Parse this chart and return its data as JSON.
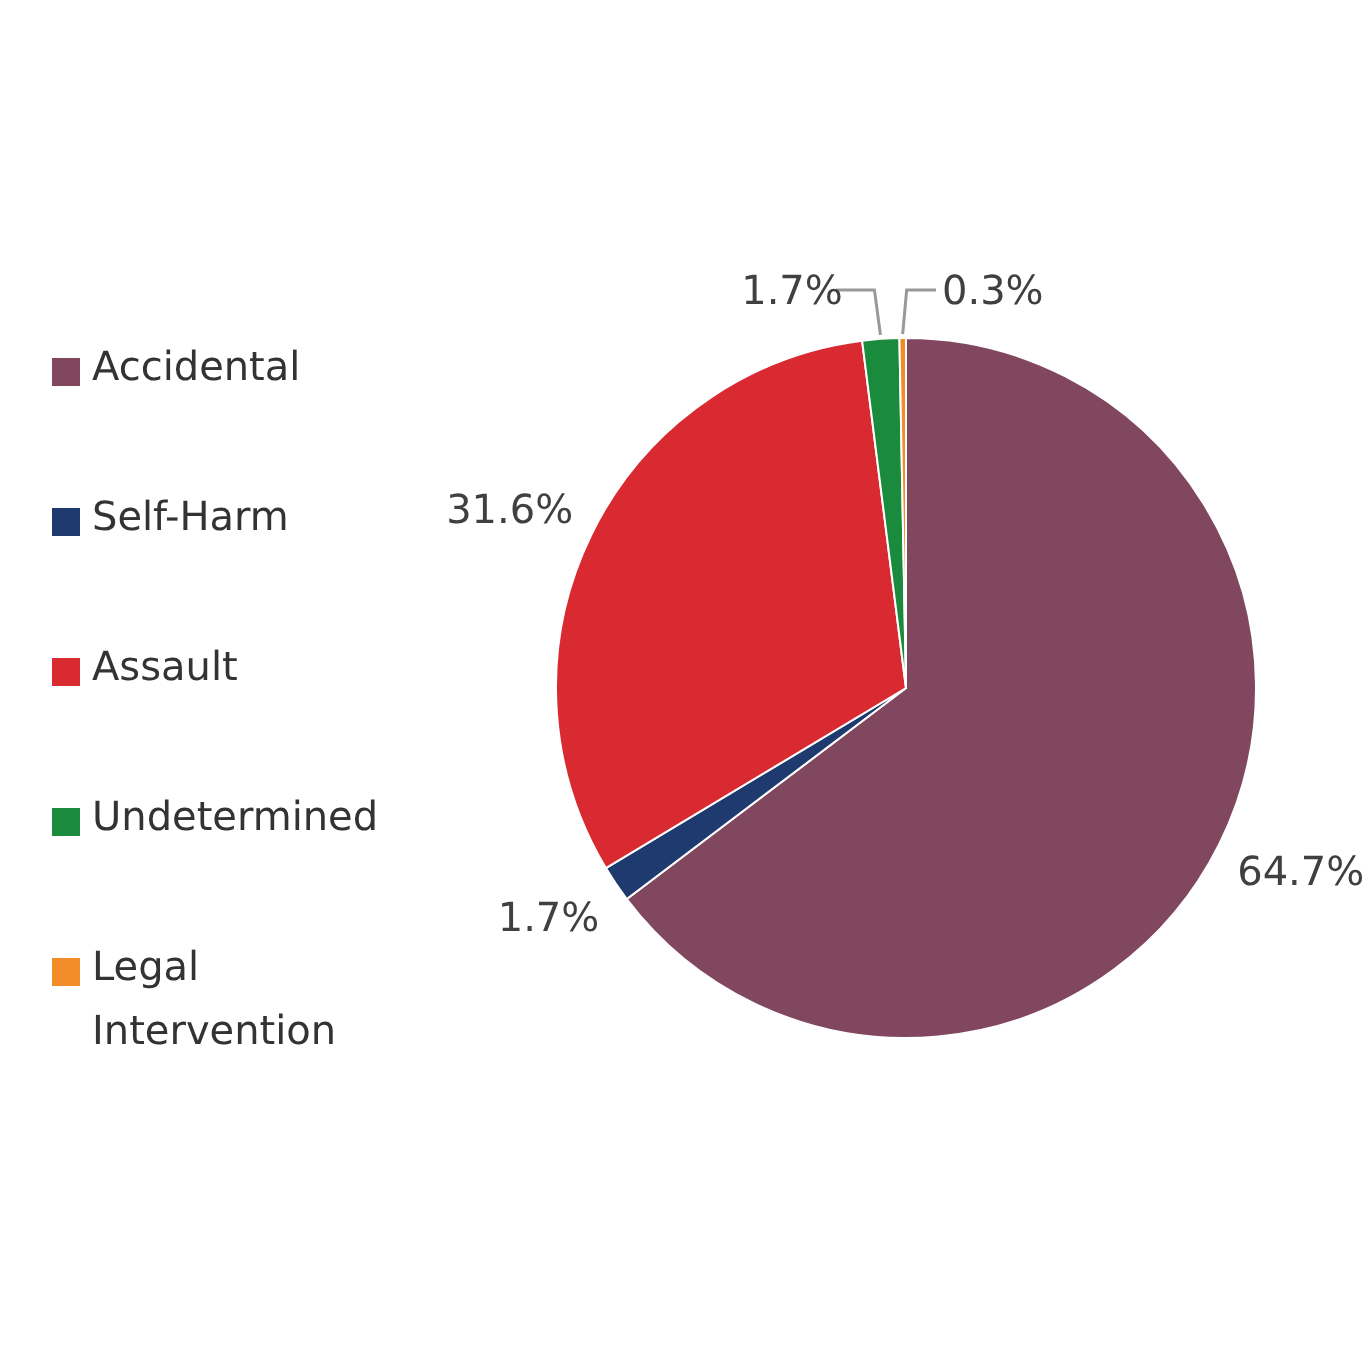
{
  "chart_data": {
    "type": "pie",
    "categories": [
      "Accidental",
      "Self-Harm",
      "Assault",
      "Undetermined",
      "Legal Intervention"
    ],
    "values": [
      64.7,
      1.7,
      31.6,
      1.7,
      0.3
    ],
    "colors": [
      "#81475e",
      "#1f3a6e",
      "#d92a32",
      "#1a8a3c",
      "#f28c28"
    ],
    "value_labels": [
      "64.7%",
      "1.7%",
      "31.6%",
      "1.7%",
      "0.3%"
    ],
    "legend": "left"
  }
}
